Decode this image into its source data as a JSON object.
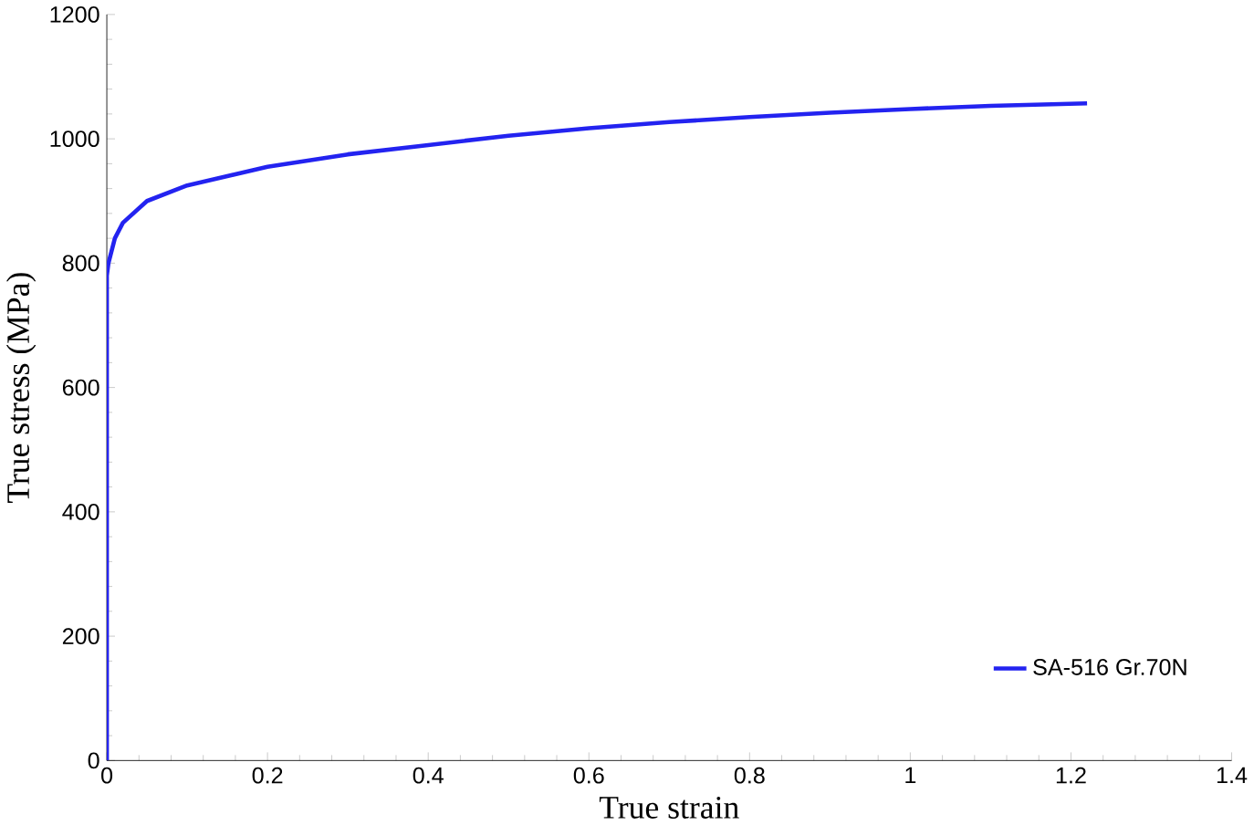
{
  "chart_data": {
    "type": "line",
    "xlabel": "True strain",
    "ylabel": "True stress (MPa)",
    "xlim": [
      0,
      1.4
    ],
    "xticks": [
      0,
      0.2,
      0.4,
      0.6,
      0.8,
      1,
      1.2,
      1.4
    ],
    "ylim": [
      0,
      1200
    ],
    "yticks": [
      0,
      200,
      400,
      600,
      800,
      1000,
      1200
    ],
    "grid": false,
    "legend": "bottom right",
    "marker": "none",
    "line_style": "solid",
    "series": [
      {
        "name": "SA-516 Gr.70N",
        "color": "#2323f0",
        "x": [
          0,
          0,
          0.002,
          0.01,
          0.02,
          0.05,
          0.1,
          0.2,
          0.3,
          0.4,
          0.5,
          0.6,
          0.7,
          0.8,
          0.9,
          1.0,
          1.1,
          1.22
        ],
        "values": [
          0,
          780,
          800,
          840,
          865,
          900,
          925,
          955,
          975,
          990,
          1005,
          1017,
          1027,
          1035,
          1042,
          1048,
          1053,
          1057
        ]
      }
    ]
  }
}
